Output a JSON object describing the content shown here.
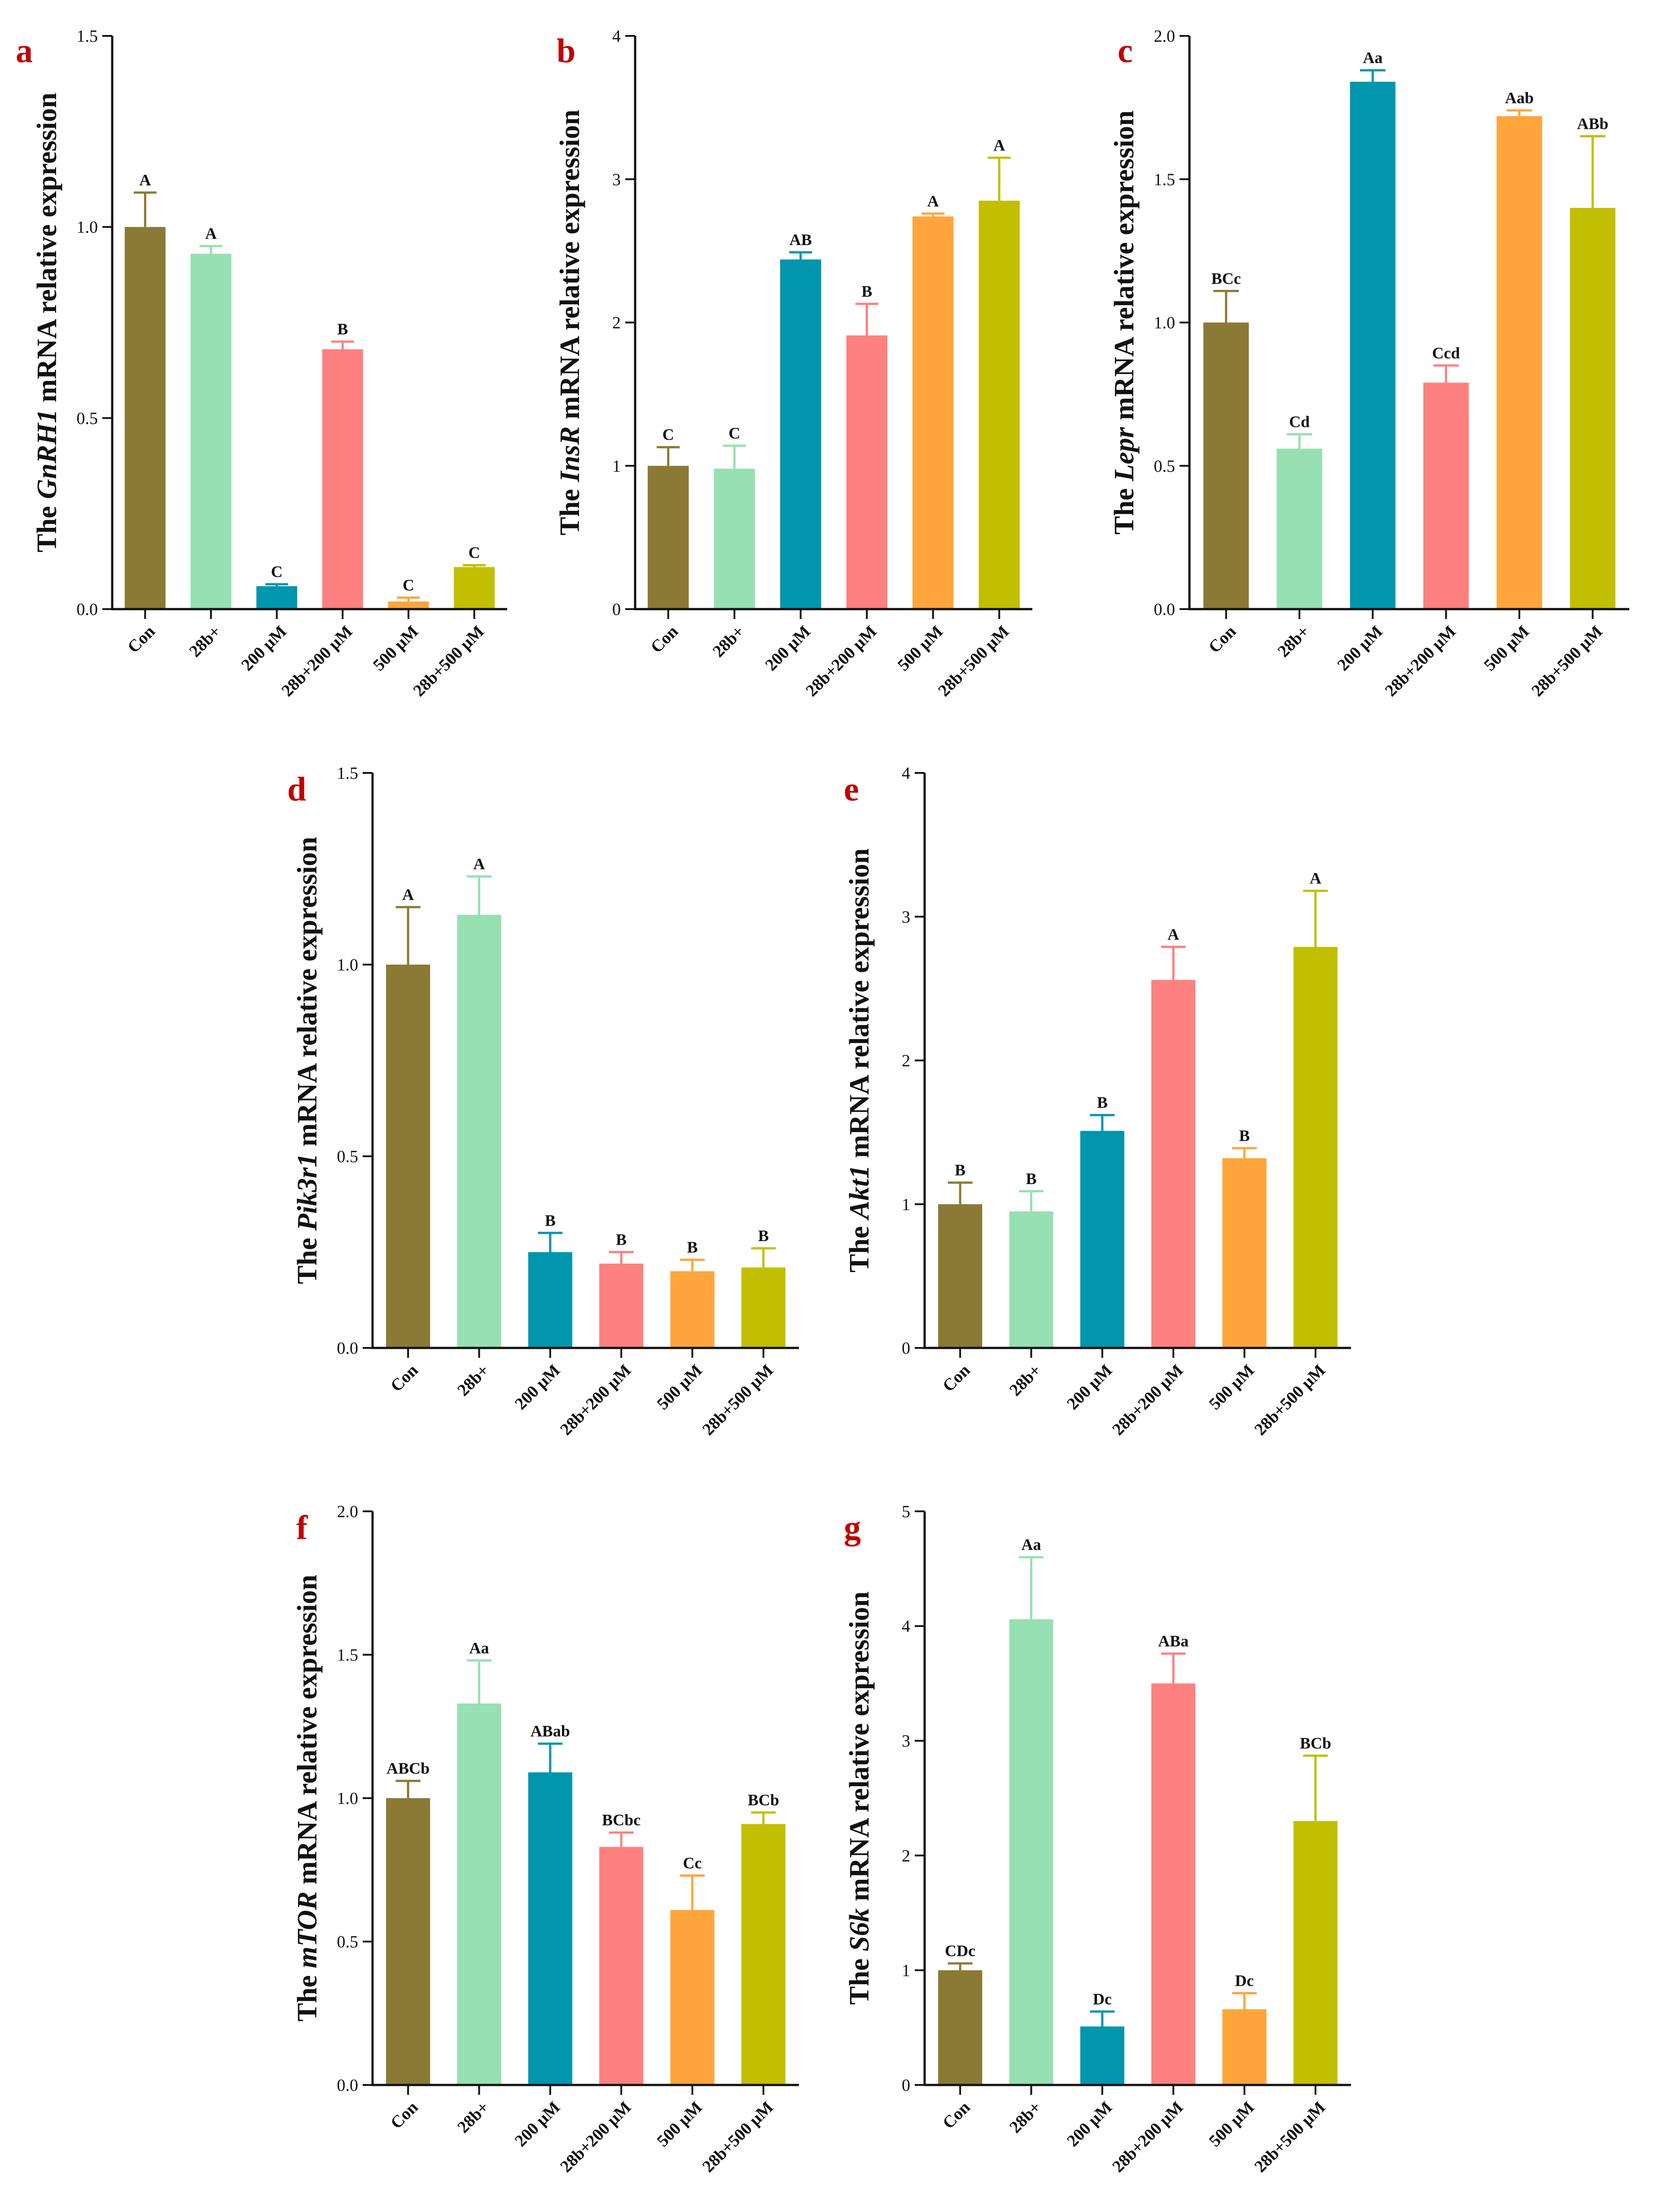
{
  "colors": {
    "bars": [
      "#8B7A35",
      "#97E0B2",
      "#0096AE",
      "#FF8080",
      "#FFA53C",
      "#C2BF00"
    ],
    "panel_letter": "#C00000",
    "axis": "#111111"
  },
  "chart_data": [
    {
      "type": "bar",
      "letter": "a",
      "gene": "GnRH1",
      "ylabel_prefix": "The ",
      "ylabel_suffix": " mRNA relative expression",
      "categories": [
        "Con",
        "28b+",
        "200 μM",
        "28b+200 μM",
        "500 μM",
        "28b+500 μM"
      ],
      "values": [
        1.0,
        0.93,
        0.06,
        0.68,
        0.02,
        0.11
      ],
      "errors": [
        0.09,
        0.02,
        0.005,
        0.02,
        0.01,
        0.005
      ],
      "sig_labels": [
        "A",
        "A",
        "C",
        "B",
        "C",
        "C"
      ],
      "ylim": [
        0,
        1.5
      ],
      "yticks": [
        0.0,
        0.5,
        1.0,
        1.5
      ],
      "ytick_labels": [
        "0.0",
        "0.5",
        "1.0",
        "1.5"
      ]
    },
    {
      "type": "bar",
      "letter": "b",
      "gene": "InsR",
      "ylabel_prefix": "The ",
      "ylabel_suffix": " mRNA relative expression",
      "categories": [
        "Con",
        "28b+",
        "200 μM",
        "28b+200 μM",
        "500 μM",
        "28b+500 μM"
      ],
      "values": [
        1.0,
        0.98,
        2.44,
        1.91,
        2.74,
        2.85
      ],
      "errors": [
        0.13,
        0.16,
        0.05,
        0.22,
        0.02,
        0.3
      ],
      "sig_labels": [
        "C",
        "C",
        "AB",
        "B",
        "A",
        "A"
      ],
      "ylim": [
        0,
        4
      ],
      "yticks": [
        0,
        1,
        2,
        3,
        4
      ],
      "ytick_labels": [
        "0",
        "1",
        "2",
        "3",
        "4"
      ]
    },
    {
      "type": "bar",
      "letter": "c",
      "gene": "Lepr",
      "ylabel_prefix": "The ",
      "ylabel_suffix": " mRNA relative expression",
      "categories": [
        "Con",
        "28b+",
        "200 μM",
        "28b+200 μM",
        "500 μM",
        "28b+500 μM"
      ],
      "values": [
        1.0,
        0.56,
        1.84,
        0.79,
        1.72,
        1.4
      ],
      "errors": [
        0.11,
        0.05,
        0.04,
        0.06,
        0.02,
        0.25
      ],
      "sig_labels": [
        "BCc",
        "Cd",
        "Aa",
        "Ccd",
        "Aab",
        "ABb"
      ],
      "ylim": [
        0,
        2.0
      ],
      "yticks": [
        0.0,
        0.5,
        1.0,
        1.5,
        2.0
      ],
      "ytick_labels": [
        "0.0",
        "0.5",
        "1.0",
        "1.5",
        "2.0"
      ]
    },
    {
      "type": "bar",
      "letter": "d",
      "gene": "Pik3r1",
      "ylabel_prefix": "The ",
      "ylabel_suffix": " mRNA relative expression",
      "categories": [
        "Con",
        "28b+",
        "200 μM",
        "28b+200 μM",
        "500 μM",
        "28b+500 μM"
      ],
      "values": [
        1.0,
        1.13,
        0.25,
        0.22,
        0.2,
        0.21
      ],
      "errors": [
        0.15,
        0.1,
        0.05,
        0.03,
        0.03,
        0.05
      ],
      "sig_labels": [
        "A",
        "A",
        "B",
        "B",
        "B",
        "B"
      ],
      "ylim": [
        0,
        1.5
      ],
      "yticks": [
        0.0,
        0.5,
        1.0,
        1.5
      ],
      "ytick_labels": [
        "0.0",
        "0.5",
        "1.0",
        "1.5"
      ]
    },
    {
      "type": "bar",
      "letter": "e",
      "gene": "Akt1",
      "ylabel_prefix": "The ",
      "ylabel_suffix": " mRNA relative expression",
      "categories": [
        "Con",
        "28b+",
        "200 μM",
        "28b+200 μM",
        "500 μM",
        "28b+500 μM"
      ],
      "values": [
        1.0,
        0.95,
        1.51,
        2.56,
        1.32,
        2.79
      ],
      "errors": [
        0.15,
        0.14,
        0.11,
        0.23,
        0.07,
        0.39
      ],
      "sig_labels": [
        "B",
        "B",
        "B",
        "A",
        "B",
        "A"
      ],
      "ylim": [
        0,
        4
      ],
      "yticks": [
        0,
        1,
        2,
        3,
        4
      ],
      "ytick_labels": [
        "0",
        "1",
        "2",
        "3",
        "4"
      ]
    },
    {
      "type": "bar",
      "letter": "f",
      "gene": "mTOR",
      "ylabel_prefix": "The ",
      "ylabel_suffix": " mRNA relative expression",
      "categories": [
        "Con",
        "28b+",
        "200 μM",
        "28b+200 μM",
        "500 μM",
        "28b+500 μM"
      ],
      "values": [
        1.0,
        1.33,
        1.09,
        0.83,
        0.61,
        0.91
      ],
      "errors": [
        0.06,
        0.15,
        0.1,
        0.05,
        0.12,
        0.04
      ],
      "sig_labels": [
        "ABCb",
        "Aa",
        "ABab",
        "BCbc",
        "Cc",
        "BCb"
      ],
      "ylim": [
        0,
        2.0
      ],
      "yticks": [
        0.0,
        0.5,
        1.0,
        1.5,
        2.0
      ],
      "ytick_labels": [
        "0.0",
        "0.5",
        "1.0",
        "1.5",
        "2.0"
      ]
    },
    {
      "type": "bar",
      "letter": "g",
      "gene": "S6k",
      "ylabel_prefix": "The ",
      "ylabel_suffix": " mRNA relative expression",
      "categories": [
        "Con",
        "28b+",
        "200 μM",
        "28b+200 μM",
        "500 μM",
        "28b+500 μM"
      ],
      "values": [
        1.0,
        4.06,
        0.51,
        3.5,
        0.66,
        2.3
      ],
      "errors": [
        0.06,
        0.54,
        0.13,
        0.26,
        0.14,
        0.57
      ],
      "sig_labels": [
        "CDc",
        "Aa",
        "Dc",
        "ABa",
        "Dc",
        "BCb"
      ],
      "ylim": [
        0,
        5
      ],
      "yticks": [
        0,
        1,
        2,
        3,
        4,
        5
      ],
      "ytick_labels": [
        "0",
        "1",
        "2",
        "3",
        "4",
        "5"
      ]
    }
  ]
}
